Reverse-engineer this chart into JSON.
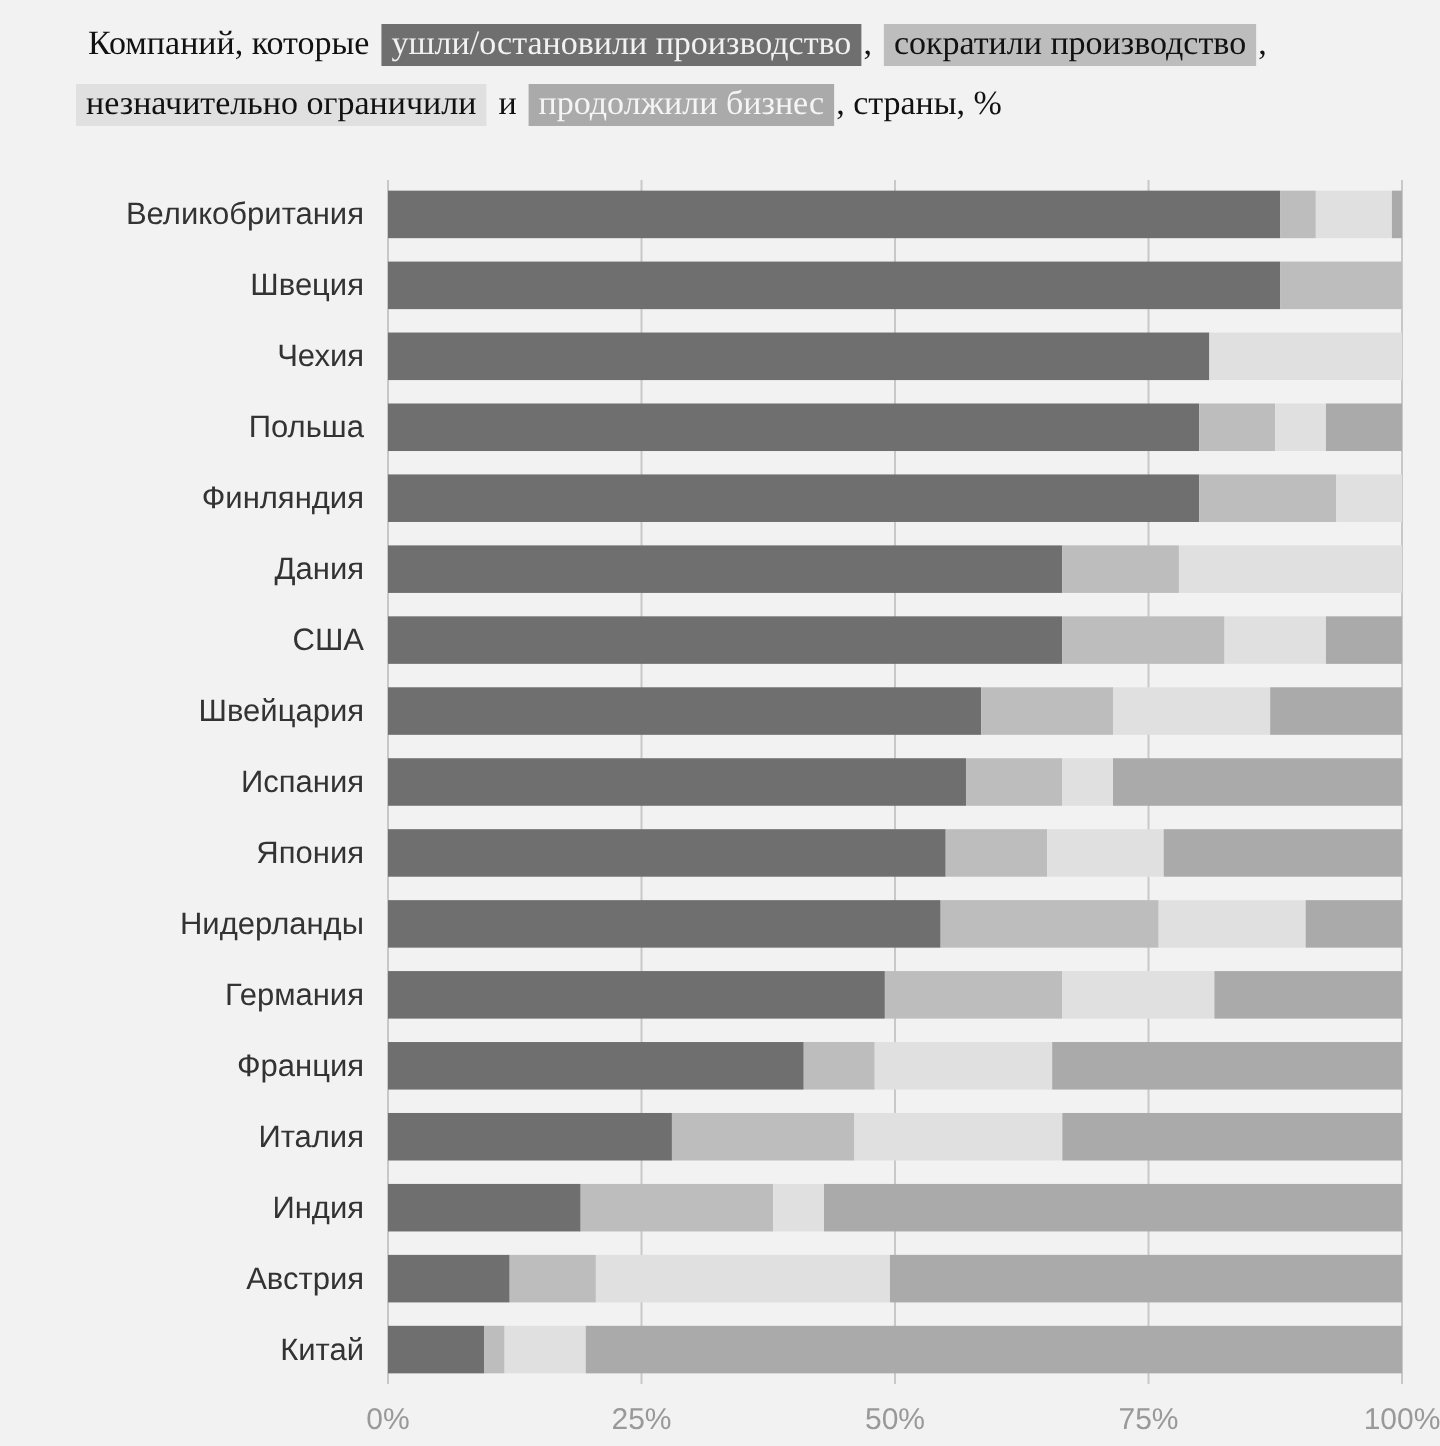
{
  "chart_data": {
    "type": "bar",
    "orientation": "horizontal",
    "stacked": true,
    "title": "Компаний, которые",
    "annotations": [
      ",",
      ",",
      "и",
      ", страны, %"
    ],
    "legend": "top left",
    "categories": [
      "Великобритания",
      "Швеция",
      "Чехия",
      "Польша",
      "Финляндия",
      "Дания",
      "США",
      "Швейцария",
      "Испания",
      "Япония",
      "Нидерланды",
      "Германия",
      "Франция",
      "Италия",
      "Индия",
      "Австрия",
      "Китай"
    ],
    "series": [
      {
        "name": "ушли/остановили производство",
        "color": "#6f6f6f",
        "values": [
          88,
          88,
          81,
          80,
          80,
          66.5,
          66.5,
          58.5,
          57,
          55,
          54.5,
          49,
          41,
          28,
          19,
          12,
          9.5
        ]
      },
      {
        "name": "сократили производство",
        "color": "#bdbdbd",
        "values": [
          3.5,
          12,
          0,
          7.5,
          13.5,
          11.5,
          16,
          13,
          9.5,
          10,
          21.5,
          17.5,
          7,
          18,
          19,
          8.5,
          2
        ]
      },
      {
        "name": "незначительно ограничили",
        "color": "#e0e0e0",
        "values": [
          7.5,
          0,
          19,
          5,
          6.5,
          22,
          10,
          15.5,
          5,
          11.5,
          14.5,
          15,
          17.5,
          20.5,
          5,
          29,
          8
        ]
      },
      {
        "name": "продолжили бизнес",
        "color": "#aaaaaa",
        "values": [
          1,
          0,
          0,
          7.5,
          0,
          0,
          7.5,
          13,
          28.5,
          23.5,
          9.5,
          18.5,
          34.5,
          33.5,
          57,
          50.5,
          80.5
        ]
      }
    ],
    "xlim": [
      0,
      100
    ],
    "xticks": [
      {
        "value": 0,
        "label": "0%"
      },
      {
        "value": 25,
        "label": "25%"
      },
      {
        "value": 50,
        "label": "50%"
      },
      {
        "value": 75,
        "label": "75%"
      },
      {
        "value": 100,
        "label": "100%"
      }
    ],
    "grid": "x"
  }
}
